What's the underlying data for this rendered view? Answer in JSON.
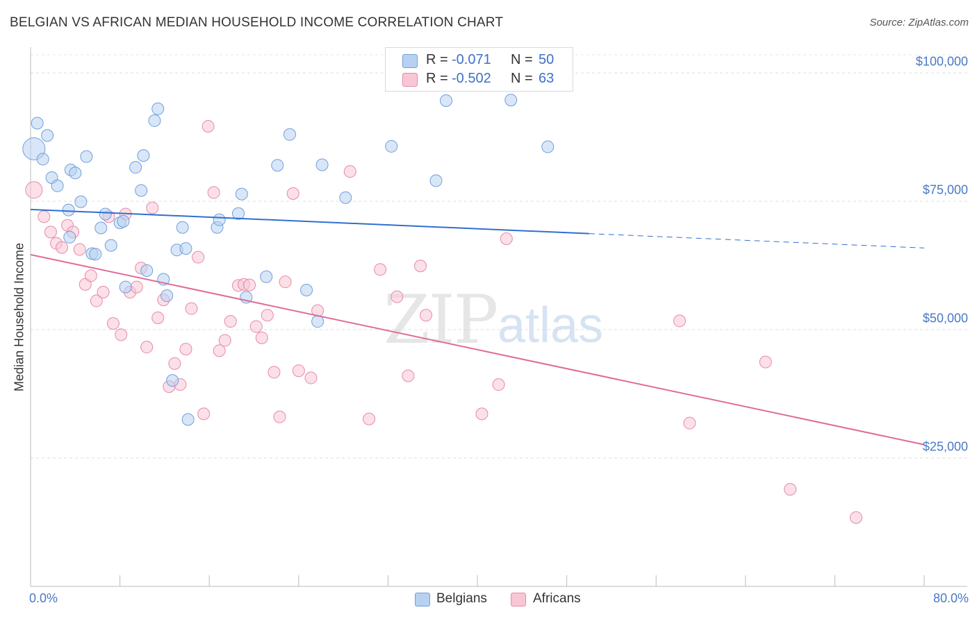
{
  "chart_data": {
    "type": "scatter",
    "title": "BELGIAN VS AFRICAN MEDIAN HOUSEHOLD INCOME CORRELATION CHART",
    "source": "Source: ZipAtlas.com",
    "xlabel": "",
    "ylabel": "Median Household Income",
    "x_unit": "%",
    "xlim": [
      0,
      80
    ],
    "ylim": [
      0,
      105000
    ],
    "x_tick_labels": [
      "0.0%",
      "80.0%"
    ],
    "y_ticks": [
      25000,
      50000,
      75000,
      100000
    ],
    "y_tick_labels": [
      "$25,000",
      "$50,000",
      "$75,000",
      "$100,000"
    ],
    "grid": true,
    "watermark": {
      "zip": "ZIP",
      "atlas": "atlas"
    },
    "legend_top": [
      {
        "r_label": "R =",
        "r_value": "-0.071",
        "n_label": "N =",
        "n_value": "50"
      },
      {
        "r_label": "R =",
        "r_value": "-0.502",
        "n_label": "N =",
        "n_value": "63"
      }
    ],
    "colors": {
      "belgian_fill": "#b8d1f1",
      "belgian_stroke": "#6f9fdc",
      "belgian_line": "#2f6fd0",
      "african_fill": "#f8c6d5",
      "african_stroke": "#e889a8",
      "african_line": "#e06b96"
    },
    "series": [
      {
        "name": "Belgians",
        "trend": {
          "x0": 0,
          "y0": 73400,
          "x_solid_end": 50,
          "y_solid_end": 68700,
          "x1": 80,
          "y1": 65900
        },
        "points": [
          [
            0.3,
            85200
          ],
          [
            0.6,
            90200
          ],
          [
            1.1,
            83200
          ],
          [
            1.5,
            87800
          ],
          [
            1.9,
            79600
          ],
          [
            2.4,
            78000
          ],
          [
            3.4,
            73300
          ],
          [
            3.5,
            68000
          ],
          [
            3.6,
            81100
          ],
          [
            4.0,
            80500
          ],
          [
            4.5,
            74900
          ],
          [
            5.0,
            83700
          ],
          [
            5.5,
            64800
          ],
          [
            5.8,
            64700
          ],
          [
            6.3,
            69800
          ],
          [
            6.7,
            72500
          ],
          [
            7.2,
            66400
          ],
          [
            8.0,
            70800
          ],
          [
            8.3,
            71100
          ],
          [
            8.5,
            58300
          ],
          [
            9.4,
            81600
          ],
          [
            9.9,
            77100
          ],
          [
            10.1,
            83900
          ],
          [
            10.4,
            61500
          ],
          [
            11.1,
            90700
          ],
          [
            11.4,
            93000
          ],
          [
            11.9,
            59800
          ],
          [
            12.2,
            56600
          ],
          [
            12.7,
            40100
          ],
          [
            13.1,
            65500
          ],
          [
            13.6,
            69900
          ],
          [
            13.9,
            65800
          ],
          [
            14.1,
            32500
          ],
          [
            16.7,
            69900
          ],
          [
            16.9,
            71400
          ],
          [
            18.6,
            72600
          ],
          [
            18.9,
            76400
          ],
          [
            19.3,
            56300
          ],
          [
            21.1,
            60300
          ],
          [
            22.1,
            82000
          ],
          [
            23.2,
            88000
          ],
          [
            24.7,
            57700
          ],
          [
            25.7,
            51600
          ],
          [
            26.1,
            82100
          ],
          [
            28.2,
            75700
          ],
          [
            32.3,
            85700
          ],
          [
            36.3,
            79000
          ],
          [
            37.2,
            94600
          ],
          [
            43.0,
            94700
          ],
          [
            46.3,
            85600
          ]
        ]
      },
      {
        "name": "Africans",
        "trend": {
          "x0": 0,
          "y0": 64600,
          "x1": 80,
          "y1": 27600
        },
        "points": [
          [
            0.3,
            77200
          ],
          [
            1.2,
            72000
          ],
          [
            1.8,
            69000
          ],
          [
            2.3,
            66800
          ],
          [
            2.8,
            66000
          ],
          [
            3.3,
            70300
          ],
          [
            3.8,
            69000
          ],
          [
            4.4,
            65600
          ],
          [
            4.9,
            58800
          ],
          [
            5.4,
            60500
          ],
          [
            5.9,
            55600
          ],
          [
            6.5,
            57300
          ],
          [
            7.0,
            72000
          ],
          [
            7.4,
            51200
          ],
          [
            8.1,
            49000
          ],
          [
            8.5,
            72500
          ],
          [
            8.9,
            57300
          ],
          [
            9.5,
            58300
          ],
          [
            9.9,
            62000
          ],
          [
            10.4,
            46600
          ],
          [
            10.9,
            73700
          ],
          [
            11.4,
            52300
          ],
          [
            11.9,
            55800
          ],
          [
            12.4,
            38900
          ],
          [
            12.9,
            43400
          ],
          [
            13.4,
            39300
          ],
          [
            13.9,
            46200
          ],
          [
            14.4,
            54100
          ],
          [
            15.0,
            64100
          ],
          [
            15.5,
            33600
          ],
          [
            15.9,
            89600
          ],
          [
            16.4,
            76700
          ],
          [
            16.9,
            45900
          ],
          [
            17.4,
            47900
          ],
          [
            17.9,
            51600
          ],
          [
            18.6,
            58600
          ],
          [
            19.1,
            58800
          ],
          [
            19.6,
            58700
          ],
          [
            20.2,
            50600
          ],
          [
            20.7,
            48400
          ],
          [
            21.2,
            52800
          ],
          [
            21.8,
            41700
          ],
          [
            22.3,
            33000
          ],
          [
            22.8,
            59300
          ],
          [
            23.5,
            76500
          ],
          [
            24.0,
            42000
          ],
          [
            25.1,
            40600
          ],
          [
            25.7,
            53700
          ],
          [
            28.6,
            80800
          ],
          [
            30.3,
            32600
          ],
          [
            31.3,
            61700
          ],
          [
            32.8,
            56400
          ],
          [
            33.8,
            41000
          ],
          [
            34.9,
            62400
          ],
          [
            35.4,
            52800
          ],
          [
            40.4,
            33600
          ],
          [
            41.9,
            39300
          ],
          [
            42.6,
            67700
          ],
          [
            58.1,
            51700
          ],
          [
            59.0,
            31800
          ],
          [
            65.8,
            43700
          ],
          [
            68.0,
            18900
          ],
          [
            73.9,
            13400
          ]
        ]
      }
    ]
  }
}
